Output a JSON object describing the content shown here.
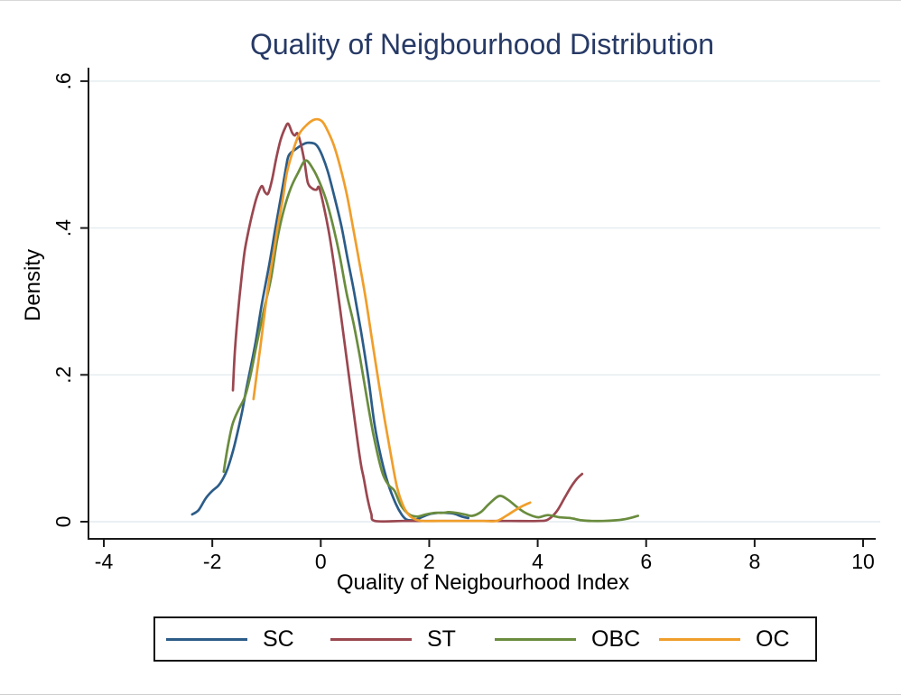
{
  "figure": {
    "title": "Quality of Neigbourhood Distribution",
    "title_color": "#273a66",
    "background": "#ffffff",
    "axis_color": "#1a1a1a",
    "gridline_color": "#e4ecef"
  },
  "chart_data": {
    "type": "line",
    "subtype": "kernel-density",
    "title": "Quality of Neigbourhood Distribution",
    "xlabel": "Quality of Neigbourhood Index",
    "ylabel": "Density",
    "xlim": [
      -4,
      10
    ],
    "ylim": [
      0,
      0.6
    ],
    "grid": "horizontal",
    "legend_position": "bottom",
    "x_ticks": [
      {
        "v": -4,
        "label": "-4"
      },
      {
        "v": -2,
        "label": "-2"
      },
      {
        "v": 0,
        "label": "0"
      },
      {
        "v": 2,
        "label": "2"
      },
      {
        "v": 4,
        "label": "4"
      },
      {
        "v": 6,
        "label": "6"
      },
      {
        "v": 8,
        "label": "8"
      },
      {
        "v": 10,
        "label": "10"
      }
    ],
    "y_ticks": [
      {
        "v": 0,
        "label": "0"
      },
      {
        "v": 0.2,
        "label": ".2"
      },
      {
        "v": 0.4,
        "label": ".4"
      },
      {
        "v": 0.6,
        "label": ".6"
      }
    ],
    "series": [
      {
        "name": "SC",
        "color": "#2c5c88",
        "points": [
          [
            -2.37,
            0.01
          ],
          [
            -2.25,
            0.016
          ],
          [
            -2.12,
            0.032
          ],
          [
            -2.0,
            0.042
          ],
          [
            -1.89,
            0.049
          ],
          [
            -1.8,
            0.059
          ],
          [
            -1.72,
            0.072
          ],
          [
            -1.62,
            0.096
          ],
          [
            -1.54,
            0.12
          ],
          [
            -1.45,
            0.15
          ],
          [
            -1.38,
            0.178
          ],
          [
            -1.32,
            0.2
          ],
          [
            -1.2,
            0.245
          ],
          [
            -1.09,
            0.295
          ],
          [
            -0.95,
            0.35
          ],
          [
            -0.84,
            0.398
          ],
          [
            -0.74,
            0.44
          ],
          [
            -0.64,
            0.483
          ],
          [
            -0.59,
            0.499
          ],
          [
            -0.47,
            0.507
          ],
          [
            -0.35,
            0.513
          ],
          [
            -0.25,
            0.516
          ],
          [
            -0.12,
            0.515
          ],
          [
            -0.05,
            0.51
          ],
          [
            0.03,
            0.498
          ],
          [
            0.13,
            0.477
          ],
          [
            0.24,
            0.446
          ],
          [
            0.38,
            0.403
          ],
          [
            0.49,
            0.36
          ],
          [
            0.61,
            0.315
          ],
          [
            0.74,
            0.26
          ],
          [
            0.88,
            0.194
          ],
          [
            0.99,
            0.133
          ],
          [
            1.11,
            0.088
          ],
          [
            1.24,
            0.052
          ],
          [
            1.38,
            0.025
          ],
          [
            1.49,
            0.01
          ],
          [
            1.58,
            0.003
          ],
          [
            1.71,
            0.002
          ],
          [
            1.83,
            0.005
          ],
          [
            1.99,
            0.01
          ],
          [
            2.16,
            0.012
          ],
          [
            2.29,
            0.012
          ],
          [
            2.45,
            0.011
          ],
          [
            2.6,
            0.007
          ],
          [
            2.72,
            0.005
          ]
        ]
      },
      {
        "name": "ST",
        "color": "#9a4750",
        "points": [
          [
            -1.62,
            0.179
          ],
          [
            -1.59,
            0.225
          ],
          [
            -1.55,
            0.265
          ],
          [
            -1.5,
            0.305
          ],
          [
            -1.45,
            0.34
          ],
          [
            -1.4,
            0.37
          ],
          [
            -1.33,
            0.397
          ],
          [
            -1.26,
            0.42
          ],
          [
            -1.18,
            0.442
          ],
          [
            -1.09,
            0.457
          ],
          [
            -1.03,
            0.449
          ],
          [
            -0.97,
            0.447
          ],
          [
            -0.9,
            0.465
          ],
          [
            -0.82,
            0.495
          ],
          [
            -0.74,
            0.52
          ],
          [
            -0.66,
            0.536
          ],
          [
            -0.6,
            0.542
          ],
          [
            -0.53,
            0.53
          ],
          [
            -0.48,
            0.526
          ],
          [
            -0.43,
            0.529
          ],
          [
            -0.37,
            0.515
          ],
          [
            -0.3,
            0.49
          ],
          [
            -0.24,
            0.462
          ],
          [
            -0.16,
            0.454
          ],
          [
            -0.08,
            0.452
          ],
          [
            -0.03,
            0.455
          ],
          [
            0.06,
            0.428
          ],
          [
            0.16,
            0.39
          ],
          [
            0.26,
            0.342
          ],
          [
            0.36,
            0.288
          ],
          [
            0.46,
            0.232
          ],
          [
            0.56,
            0.176
          ],
          [
            0.66,
            0.12
          ],
          [
            0.74,
            0.078
          ],
          [
            0.79,
            0.06
          ],
          [
            0.86,
            0.032
          ],
          [
            0.93,
            0.011
          ],
          [
            1.0,
            0.001
          ],
          [
            1.5,
            0.001
          ],
          [
            2.0,
            0.001
          ],
          [
            2.5,
            0.001
          ],
          [
            3.0,
            0.001
          ],
          [
            3.5,
            0.001
          ],
          [
            4.0,
            0.001
          ],
          [
            4.19,
            0.003
          ],
          [
            4.35,
            0.014
          ],
          [
            4.5,
            0.033
          ],
          [
            4.62,
            0.048
          ],
          [
            4.73,
            0.059
          ],
          [
            4.82,
            0.065
          ]
        ]
      },
      {
        "name": "OBC",
        "color": "#6a8c3e",
        "points": [
          [
            -1.79,
            0.068
          ],
          [
            -1.72,
            0.1
          ],
          [
            -1.63,
            0.132
          ],
          [
            -1.52,
            0.152
          ],
          [
            -1.4,
            0.17
          ],
          [
            -1.3,
            0.198
          ],
          [
            -1.18,
            0.242
          ],
          [
            -1.05,
            0.288
          ],
          [
            -0.92,
            0.33
          ],
          [
            -0.8,
            0.385
          ],
          [
            -0.68,
            0.425
          ],
          [
            -0.55,
            0.455
          ],
          [
            -0.42,
            0.475
          ],
          [
            -0.28,
            0.492
          ],
          [
            -0.14,
            0.48
          ],
          [
            -0.02,
            0.462
          ],
          [
            0.1,
            0.438
          ],
          [
            0.22,
            0.405
          ],
          [
            0.35,
            0.362
          ],
          [
            0.48,
            0.31
          ],
          [
            0.6,
            0.272
          ],
          [
            0.72,
            0.225
          ],
          [
            0.85,
            0.168
          ],
          [
            0.98,
            0.115
          ],
          [
            1.13,
            0.068
          ],
          [
            1.25,
            0.05
          ],
          [
            1.36,
            0.042
          ],
          [
            1.48,
            0.022
          ],
          [
            1.63,
            0.01
          ],
          [
            1.78,
            0.007
          ],
          [
            1.94,
            0.01
          ],
          [
            2.1,
            0.012
          ],
          [
            2.25,
            0.012
          ],
          [
            2.36,
            0.013
          ],
          [
            2.5,
            0.012
          ],
          [
            2.65,
            0.01
          ],
          [
            2.79,
            0.008
          ],
          [
            2.95,
            0.013
          ],
          [
            3.1,
            0.024
          ],
          [
            3.29,
            0.035
          ],
          [
            3.45,
            0.03
          ],
          [
            3.6,
            0.021
          ],
          [
            3.75,
            0.013
          ],
          [
            3.9,
            0.008
          ],
          [
            4.02,
            0.006
          ],
          [
            4.19,
            0.009
          ],
          [
            4.4,
            0.006
          ],
          [
            4.6,
            0.005
          ],
          [
            4.8,
            0.002
          ],
          [
            5.0,
            0.001
          ],
          [
            5.2,
            0.001
          ],
          [
            5.45,
            0.002
          ],
          [
            5.65,
            0.004
          ],
          [
            5.85,
            0.008
          ]
        ]
      },
      {
        "name": "OC",
        "color": "#f09e2b",
        "points": [
          [
            -1.24,
            0.167
          ],
          [
            -1.17,
            0.207
          ],
          [
            -1.11,
            0.24
          ],
          [
            -1.03,
            0.287
          ],
          [
            -0.95,
            0.33
          ],
          [
            -0.87,
            0.366
          ],
          [
            -0.79,
            0.403
          ],
          [
            -0.7,
            0.44
          ],
          [
            -0.62,
            0.477
          ],
          [
            -0.5,
            0.508
          ],
          [
            -0.39,
            0.529
          ],
          [
            -0.25,
            0.541
          ],
          [
            -0.14,
            0.547
          ],
          [
            -0.05,
            0.548
          ],
          [
            0.04,
            0.544
          ],
          [
            0.13,
            0.532
          ],
          [
            0.24,
            0.513
          ],
          [
            0.36,
            0.483
          ],
          [
            0.48,
            0.446
          ],
          [
            0.59,
            0.403
          ],
          [
            0.71,
            0.354
          ],
          [
            0.83,
            0.303
          ],
          [
            0.94,
            0.25
          ],
          [
            1.06,
            0.193
          ],
          [
            1.18,
            0.138
          ],
          [
            1.3,
            0.088
          ],
          [
            1.41,
            0.046
          ],
          [
            1.53,
            0.02
          ],
          [
            1.64,
            0.008
          ],
          [
            1.75,
            0.003
          ],
          [
            1.88,
            0.001
          ],
          [
            2.2,
            0.001
          ],
          [
            2.6,
            0.001
          ],
          [
            3.0,
            0.001
          ],
          [
            3.24,
            0.001
          ],
          [
            3.42,
            0.008
          ],
          [
            3.57,
            0.015
          ],
          [
            3.71,
            0.021
          ],
          [
            3.86,
            0.026
          ]
        ]
      }
    ]
  }
}
